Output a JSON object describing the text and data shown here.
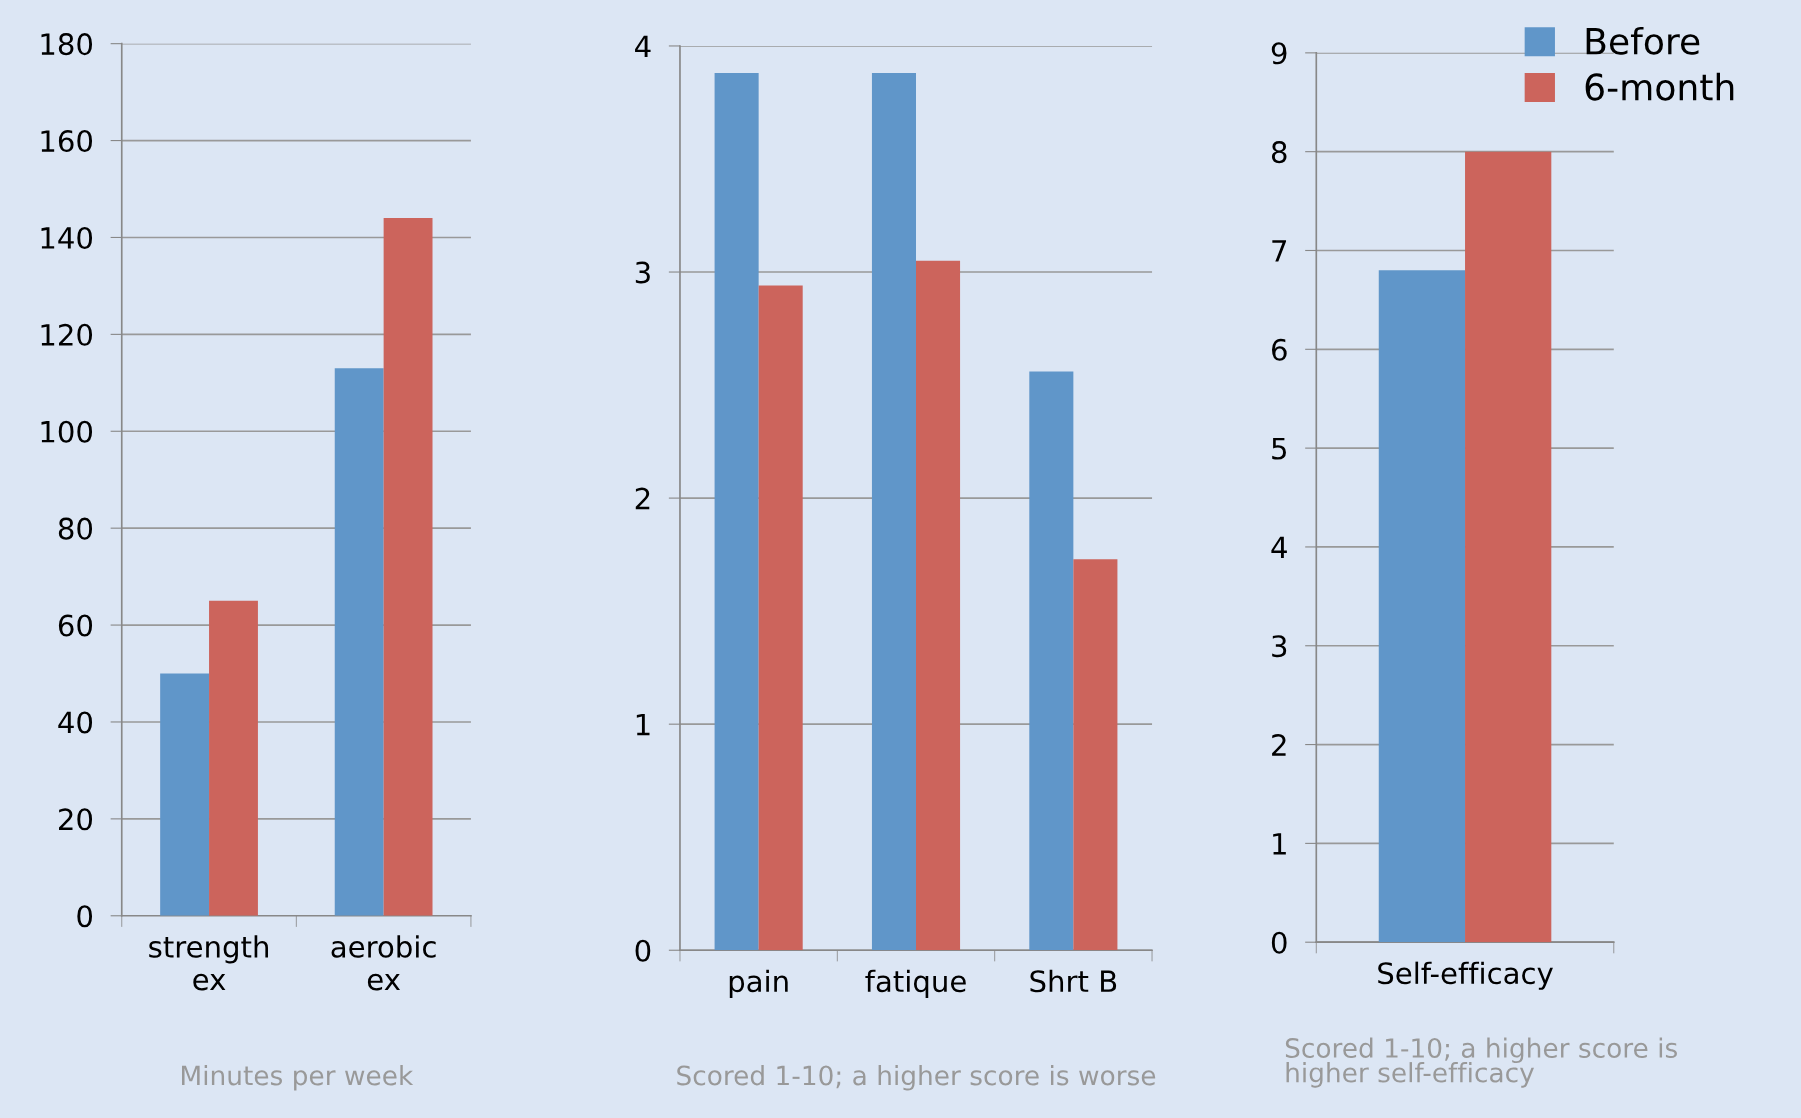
{
  "chart_data": [
    {
      "type": "bar",
      "categories": [
        "strength\nex",
        "aerobic\nex"
      ],
      "series": [
        {
          "color": "#6096c9",
          "values": [
            50,
            113
          ]
        },
        {
          "color": "#cc645c",
          "values": [
            65,
            144
          ]
        }
      ],
      "ylim": [
        0,
        180
      ],
      "yticks": [
        0,
        20,
        40,
        60,
        80,
        100,
        120,
        140,
        160,
        180
      ],
      "grid": "y",
      "legend": false,
      "annotations": [
        "Minutes per week"
      ]
    },
    {
      "type": "bar",
      "categories": [
        "pain",
        "fatique",
        "Shrt B"
      ],
      "series": [
        {
          "color": "#6096c9",
          "values": [
            3.88,
            3.88,
            2.56
          ]
        },
        {
          "color": "#cc645c",
          "values": [
            2.94,
            3.05,
            1.73
          ]
        }
      ],
      "ylim": [
        0,
        4
      ],
      "yticks": [
        0,
        1,
        2,
        3,
        4
      ],
      "grid": "y",
      "legend": false,
      "annotations": [
        "Scored 1-10; a higher score is worse"
      ]
    },
    {
      "type": "bar",
      "categories": [
        "Self-efficacy"
      ],
      "series": [
        {
          "name": "Before",
          "color": "#6096c9",
          "values": [
            6.8
          ]
        },
        {
          "name": "6-month",
          "color": "#cc645c",
          "values": [
            8.0
          ]
        }
      ],
      "ylim": [
        0,
        9
      ],
      "yticks": [
        0,
        1,
        2,
        3,
        4,
        5,
        6,
        7,
        8,
        9
      ],
      "grid": "y",
      "legend": "top right",
      "annotations": [
        "Scored 1-10; a higher score is\nhigher self-efficacy"
      ]
    }
  ]
}
